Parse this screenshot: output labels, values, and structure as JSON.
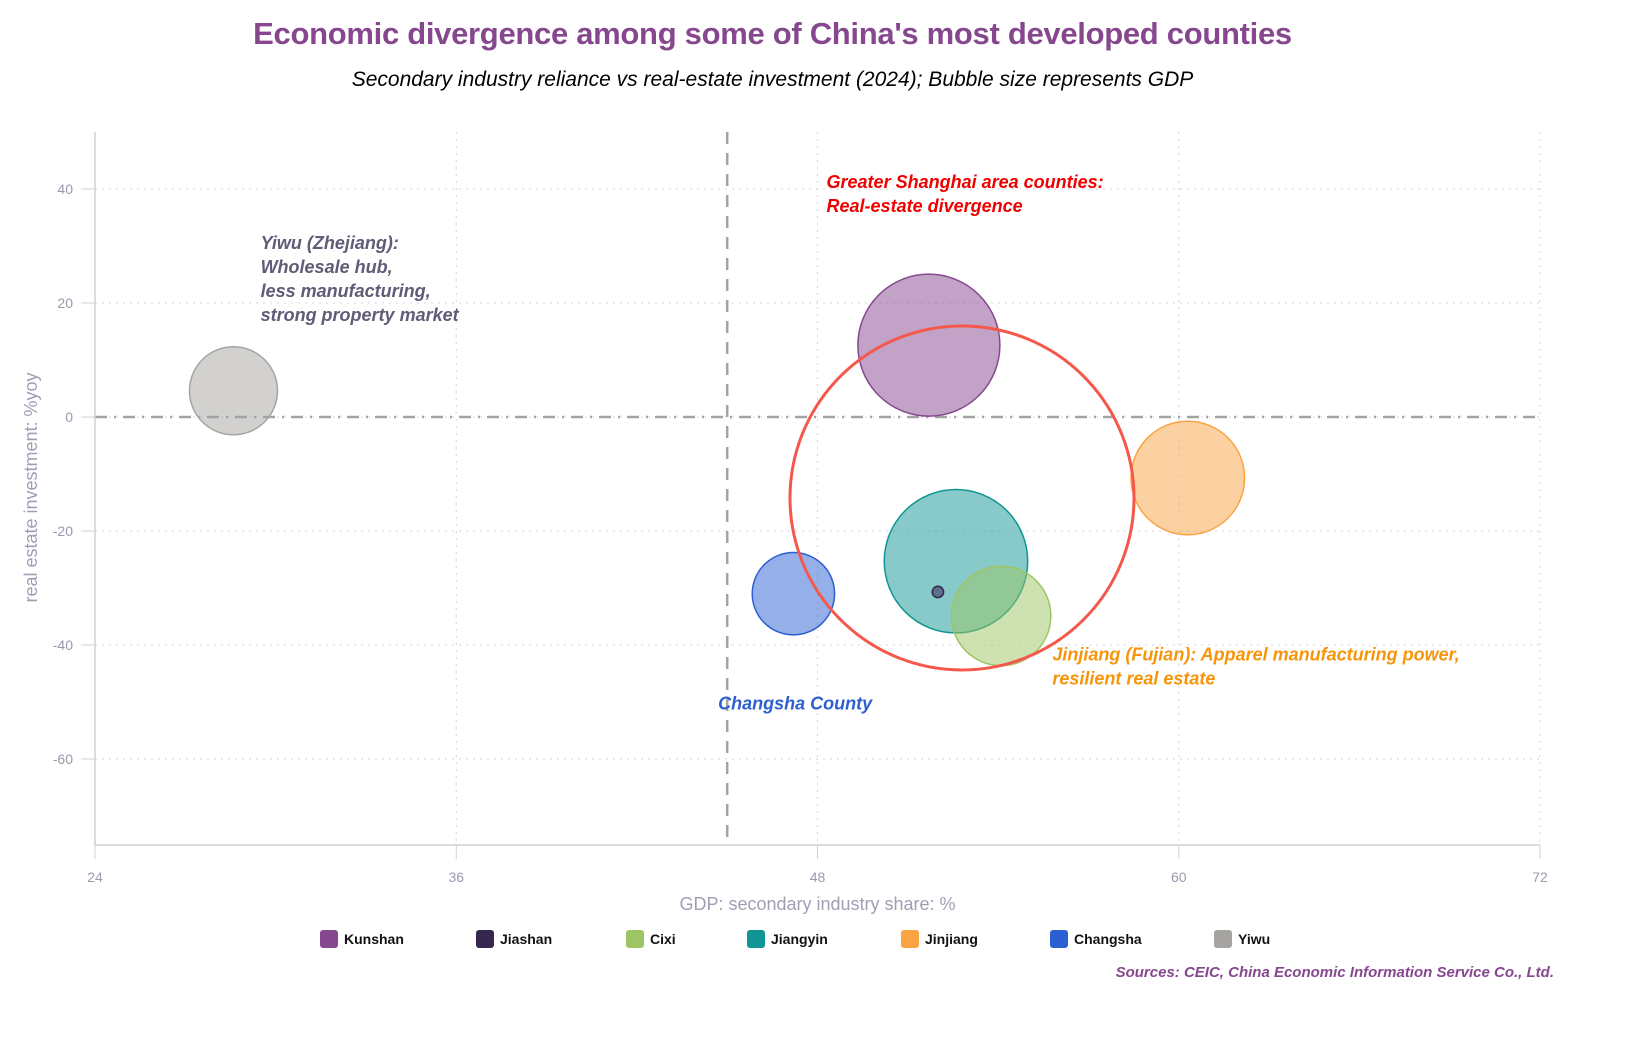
{
  "chart_data": {
    "type": "scatter",
    "subtype": "bubble",
    "title": "Economic divergence among some of China's most developed counties",
    "subtitle": "Secondary industry reliance vs real-estate investment (2024); Bubble size represents GDP",
    "xlabel": "GDP: secondary industry share: %",
    "ylabel": "real estate investment: %yoy",
    "xlim": [
      24,
      72
    ],
    "ylim": [
      -75,
      50
    ],
    "xticks": [
      24,
      36,
      48,
      60,
      72
    ],
    "yticks": [
      -60,
      -40,
      -20,
      0,
      20,
      40
    ],
    "grid": true,
    "reference_lines": {
      "vertical_x": 45,
      "horizontal_y": 0
    },
    "series": [
      {
        "name": "Kunshan",
        "color": "#86478f",
        "x": 51.7,
        "y": 12.6,
        "size_rel": 1.0
      },
      {
        "name": "Jiashan",
        "color": "#35264f",
        "x": 52.0,
        "y": -30.7,
        "size_rel": 0.08
      },
      {
        "name": "Cixi",
        "color": "#9dc564",
        "x": 54.1,
        "y": -34.9,
        "size_rel": 0.7
      },
      {
        "name": "Jiangyin",
        "color": "#0f9593",
        "x": 52.6,
        "y": -25.3,
        "size_rel": 1.01
      },
      {
        "name": "Jinjiang",
        "color": "#f9a443",
        "x": 60.3,
        "y": -10.7,
        "size_rel": 0.8
      },
      {
        "name": "Changsha",
        "color": "#2c5fd1",
        "x": 47.2,
        "y": -31.0,
        "size_rel": 0.58
      },
      {
        "name": "Yiwu",
        "color": "#a5a4a1",
        "x": 28.6,
        "y": 4.6,
        "size_rel": 0.62
      }
    ],
    "highlight_circle": {
      "x": 52.8,
      "y": -14.2,
      "color": "#f5584a",
      "label": "Greater Shanghai area counties"
    },
    "annotations": [
      {
        "lines": [
          "Yiwu (Zhejiang):",
          "Wholesale hub,",
          "less manufacturing,",
          "strong property market"
        ],
        "color": "#5e5c77",
        "x": 29.5,
        "y": 29.5
      },
      {
        "lines": [
          "Greater Shanghai area counties:",
          "Real-estate divergence"
        ],
        "color": "#f00000",
        "x": 48.3,
        "y": 40.2
      },
      {
        "lines": [
          "Jinjiang (Fujian): Apparel manufacturing power,",
          "resilient real estate"
        ],
        "color": "#f7950a",
        "x": 55.8,
        "y": -42.7
      },
      {
        "lines": [
          "Changsha County"
        ],
        "color": "#2c5fd1",
        "x": 44.7,
        "y": -51.3
      }
    ],
    "legend": {
      "placement": "bottom",
      "entries": [
        "Kunshan",
        "Jiashan",
        "Cixi",
        "Jiangyin",
        "Jinjiang",
        "Changsha",
        "Yiwu"
      ]
    },
    "source": "Sources: CEIC, China Economic Information Service Co., Ltd."
  }
}
